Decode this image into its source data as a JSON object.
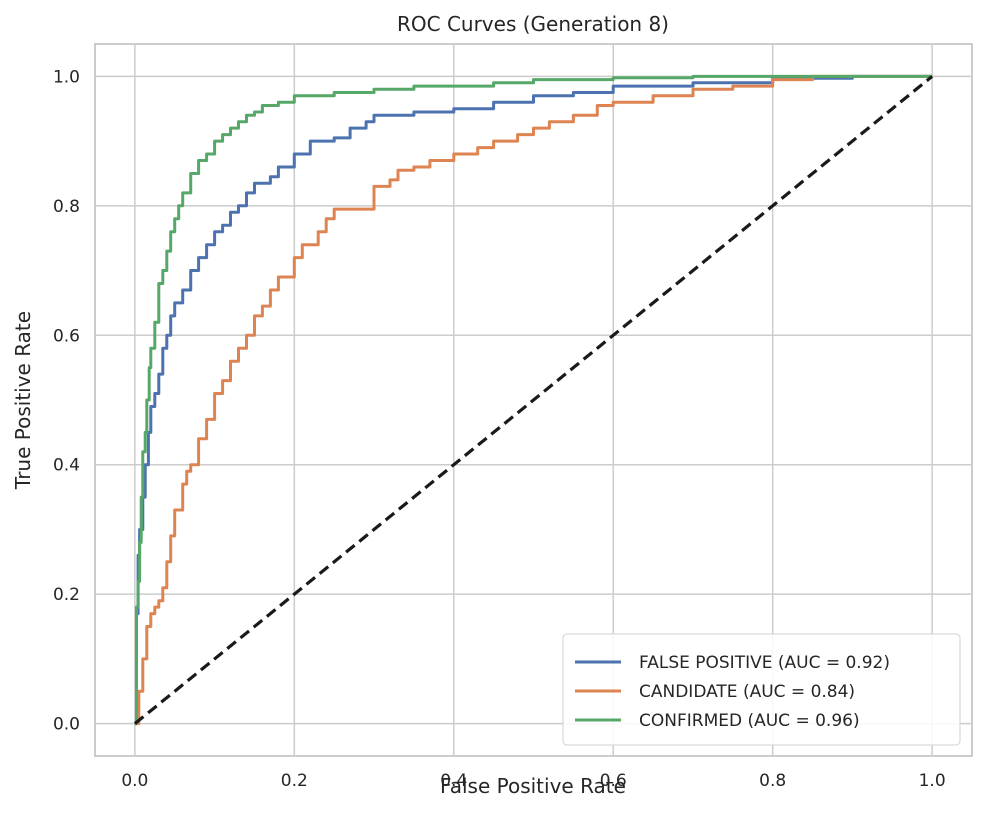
{
  "chart_data": {
    "type": "line",
    "title": "ROC Curves (Generation 8)",
    "xlabel": "False Positive Rate",
    "ylabel": "True Positive Rate",
    "xlim": [
      -0.05,
      1.05
    ],
    "ylim": [
      -0.05,
      1.05
    ],
    "xticks": [
      "0.0",
      "0.2",
      "0.4",
      "0.6",
      "0.8",
      "1.0"
    ],
    "yticks": [
      "0.0",
      "0.2",
      "0.4",
      "0.6",
      "0.8",
      "1.0"
    ],
    "grid": true,
    "legend_position": "lower-right",
    "series": [
      {
        "name": "FALSE POSITIVE (AUC = 0.92)",
        "color": "#4c72b0",
        "points": [
          [
            0,
            0
          ],
          [
            0.002,
            0.17
          ],
          [
            0.004,
            0.26
          ],
          [
            0.006,
            0.3
          ],
          [
            0.01,
            0.35
          ],
          [
            0.013,
            0.4
          ],
          [
            0.017,
            0.45
          ],
          [
            0.02,
            0.49
          ],
          [
            0.025,
            0.51
          ],
          [
            0.03,
            0.54
          ],
          [
            0.035,
            0.58
          ],
          [
            0.04,
            0.6
          ],
          [
            0.045,
            0.63
          ],
          [
            0.05,
            0.65
          ],
          [
            0.06,
            0.67
          ],
          [
            0.07,
            0.7
          ],
          [
            0.08,
            0.72
          ],
          [
            0.09,
            0.74
          ],
          [
            0.1,
            0.76
          ],
          [
            0.11,
            0.77
          ],
          [
            0.12,
            0.79
          ],
          [
            0.13,
            0.8
          ],
          [
            0.14,
            0.82
          ],
          [
            0.15,
            0.835
          ],
          [
            0.17,
            0.845
          ],
          [
            0.18,
            0.86
          ],
          [
            0.2,
            0.88
          ],
          [
            0.22,
            0.9
          ],
          [
            0.25,
            0.905
          ],
          [
            0.27,
            0.92
          ],
          [
            0.29,
            0.93
          ],
          [
            0.3,
            0.94
          ],
          [
            0.35,
            0.945
          ],
          [
            0.4,
            0.95
          ],
          [
            0.45,
            0.96
          ],
          [
            0.5,
            0.97
          ],
          [
            0.55,
            0.975
          ],
          [
            0.6,
            0.985
          ],
          [
            0.7,
            0.99
          ],
          [
            0.8,
            0.997
          ],
          [
            0.9,
            1.0
          ],
          [
            1.0,
            1.0
          ]
        ]
      },
      {
        "name": "CANDIDATE (AUC = 0.84)",
        "color": "#dd8452",
        "points": [
          [
            0,
            0
          ],
          [
            0.005,
            0.05
          ],
          [
            0.01,
            0.1
          ],
          [
            0.015,
            0.15
          ],
          [
            0.02,
            0.17
          ],
          [
            0.025,
            0.18
          ],
          [
            0.03,
            0.19
          ],
          [
            0.035,
            0.21
          ],
          [
            0.04,
            0.25
          ],
          [
            0.045,
            0.29
          ],
          [
            0.05,
            0.33
          ],
          [
            0.06,
            0.37
          ],
          [
            0.065,
            0.39
          ],
          [
            0.07,
            0.4
          ],
          [
            0.08,
            0.44
          ],
          [
            0.09,
            0.47
          ],
          [
            0.1,
            0.51
          ],
          [
            0.11,
            0.53
          ],
          [
            0.12,
            0.56
          ],
          [
            0.13,
            0.58
          ],
          [
            0.14,
            0.6
          ],
          [
            0.15,
            0.63
          ],
          [
            0.16,
            0.645
          ],
          [
            0.17,
            0.67
          ],
          [
            0.18,
            0.69
          ],
          [
            0.2,
            0.72
          ],
          [
            0.21,
            0.74
          ],
          [
            0.23,
            0.76
          ],
          [
            0.24,
            0.78
          ],
          [
            0.25,
            0.795
          ],
          [
            0.3,
            0.82
          ],
          [
            0.3,
            0.83
          ],
          [
            0.32,
            0.84
          ],
          [
            0.33,
            0.855
          ],
          [
            0.35,
            0.86
          ],
          [
            0.37,
            0.87
          ],
          [
            0.4,
            0.88
          ],
          [
            0.43,
            0.89
          ],
          [
            0.45,
            0.9
          ],
          [
            0.48,
            0.91
          ],
          [
            0.5,
            0.92
          ],
          [
            0.52,
            0.93
          ],
          [
            0.55,
            0.94
          ],
          [
            0.58,
            0.955
          ],
          [
            0.6,
            0.96
          ],
          [
            0.65,
            0.97
          ],
          [
            0.7,
            0.98
          ],
          [
            0.75,
            0.985
          ],
          [
            0.8,
            0.995
          ],
          [
            0.85,
            1.0
          ],
          [
            1.0,
            1.0
          ]
        ]
      },
      {
        "name": "CONFIRMED (AUC = 0.96)",
        "color": "#55a868",
        "points": [
          [
            0,
            0
          ],
          [
            0.002,
            0.18
          ],
          [
            0.004,
            0.22
          ],
          [
            0.006,
            0.28
          ],
          [
            0.008,
            0.35
          ],
          [
            0.01,
            0.42
          ],
          [
            0.013,
            0.45
          ],
          [
            0.015,
            0.5
          ],
          [
            0.018,
            0.55
          ],
          [
            0.02,
            0.58
          ],
          [
            0.025,
            0.62
          ],
          [
            0.03,
            0.68
          ],
          [
            0.035,
            0.7
          ],
          [
            0.04,
            0.73
          ],
          [
            0.045,
            0.76
          ],
          [
            0.05,
            0.78
          ],
          [
            0.055,
            0.8
          ],
          [
            0.06,
            0.82
          ],
          [
            0.07,
            0.85
          ],
          [
            0.08,
            0.87
          ],
          [
            0.09,
            0.88
          ],
          [
            0.1,
            0.9
          ],
          [
            0.11,
            0.91
          ],
          [
            0.12,
            0.92
          ],
          [
            0.13,
            0.93
          ],
          [
            0.14,
            0.94
          ],
          [
            0.15,
            0.945
          ],
          [
            0.16,
            0.955
          ],
          [
            0.18,
            0.96
          ],
          [
            0.2,
            0.97
          ],
          [
            0.25,
            0.975
          ],
          [
            0.3,
            0.98
          ],
          [
            0.35,
            0.985
          ],
          [
            0.4,
            0.985
          ],
          [
            0.45,
            0.99
          ],
          [
            0.5,
            0.995
          ],
          [
            0.6,
            0.998
          ],
          [
            0.7,
            1.0
          ],
          [
            1.0,
            1.0
          ]
        ]
      },
      {
        "name": "",
        "color": "#1a1a1a",
        "dashed": true,
        "points": [
          [
            0,
            0
          ],
          [
            1,
            1
          ]
        ]
      }
    ]
  }
}
